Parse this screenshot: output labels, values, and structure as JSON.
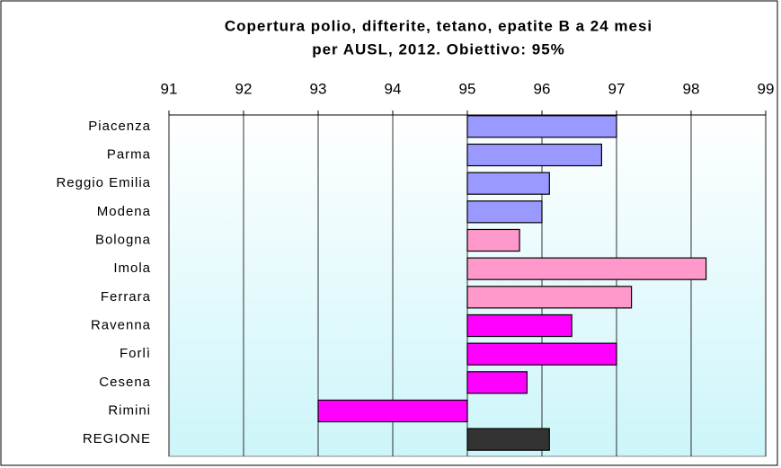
{
  "chart_data": {
    "type": "bar",
    "orientation": "horizontal",
    "title": [
      "Copertura polio, difterite, tetano, epatite B a 24 mesi",
      "per AUSL, 2012. Obiettivo: 95%"
    ],
    "categories": [
      "Piacenza",
      "Parma",
      "Reggio Emilia",
      "Modena",
      "Bologna",
      "Imola",
      "Ferrara",
      "Ravenna",
      "Forlì",
      "Cesena",
      "Rimini",
      "REGIONE"
    ],
    "values": [
      97.0,
      96.8,
      96.1,
      96.0,
      95.7,
      98.2,
      97.2,
      96.4,
      97.0,
      95.8,
      93.0,
      96.1
    ],
    "base": 95,
    "colors": [
      "#9999ff",
      "#9999ff",
      "#9999ff",
      "#9999ff",
      "#ff99cc",
      "#ff99cc",
      "#ff99cc",
      "#ff00ff",
      "#ff00ff",
      "#ff00ff",
      "#ff00ff",
      "#333333"
    ],
    "xlim": [
      91,
      99
    ],
    "xticks": [
      91,
      92,
      93,
      94,
      95,
      96,
      97,
      98,
      99
    ],
    "grid": true
  }
}
